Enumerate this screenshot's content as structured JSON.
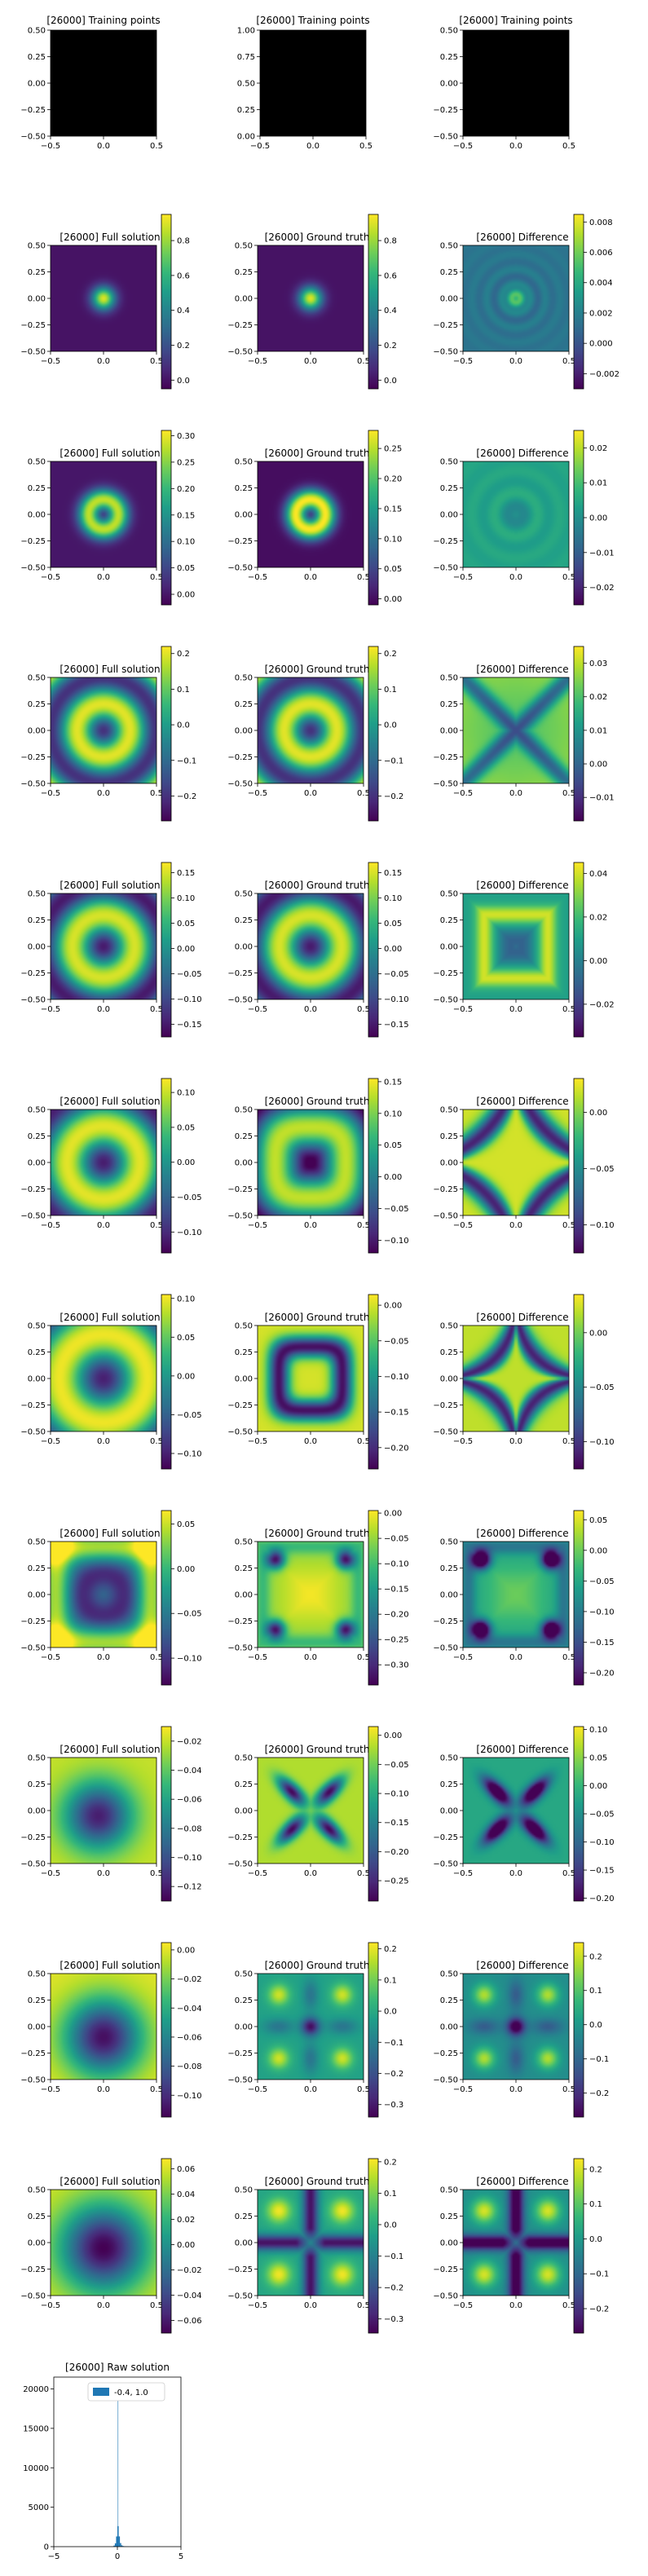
{
  "colors": {
    "viridis": [
      "#440154",
      "#482878",
      "#3e4a89",
      "#31688e",
      "#26828e",
      "#1f9e89",
      "#35b779",
      "#6dcd59",
      "#b4de2c",
      "#fde725"
    ],
    "hist_bar": "#1f77b4",
    "training_fill": "#000000"
  },
  "chart_data": {
    "type": "heatmap",
    "iteration_label": "[26000]",
    "training_row": {
      "panels": [
        {
          "title": "[26000] Training points",
          "xticks": [
            "−0.5",
            "0.0",
            "0.5"
          ],
          "yticks": [
            "0.50",
            "0.25",
            "0.00",
            "−0.25",
            "−0.50"
          ],
          "xlim": [
            -0.5,
            0.5
          ],
          "ylim": [
            -0.5,
            0.5
          ]
        },
        {
          "title": "[26000] Training points",
          "xticks": [
            "−0.5",
            "0.0",
            "0.5"
          ],
          "yticks": [
            "1.00",
            "0.75",
            "0.50",
            "0.25",
            "0.00"
          ],
          "xlim": [
            -0.5,
            0.5
          ],
          "ylim": [
            0.0,
            1.0
          ]
        },
        {
          "title": "[26000] Training points",
          "xticks": [
            "−0.5",
            "0.0",
            "0.5"
          ],
          "yticks": [
            "0.50",
            "0.25",
            "0.00",
            "−0.25",
            "−0.50"
          ],
          "xlim": [
            -0.5,
            0.5
          ],
          "ylim": [
            -0.5,
            0.5
          ]
        }
      ]
    },
    "axis_ticks": {
      "x": [
        "−0.5",
        "0.0",
        "0.5"
      ],
      "y": [
        "0.50",
        "0.25",
        "0.00",
        "−0.25",
        "−0.50"
      ],
      "xlim": [
        -0.5,
        0.5
      ],
      "ylim": [
        -0.5,
        0.5
      ]
    },
    "rows": [
      {
        "panels": [
          {
            "title": "[26000] Full solution",
            "pattern": "blob",
            "clim": [
              -0.05,
              0.95
            ],
            "cbar_ticks": [
              "0.8",
              "0.6",
              "0.4",
              "0.2",
              "0.0"
            ]
          },
          {
            "title": "[26000] Ground truth",
            "pattern": "blob",
            "clim": [
              -0.05,
              0.95
            ],
            "cbar_ticks": [
              "0.8",
              "0.6",
              "0.4",
              "0.2",
              "0.0"
            ]
          },
          {
            "title": "[26000] Difference",
            "pattern": "rings",
            "clim": [
              -0.003,
              0.0085
            ],
            "cbar_ticks": [
              "0.008",
              "0.006",
              "0.004",
              "0.002",
              "0.000",
              "−0.002"
            ]
          }
        ]
      },
      {
        "panels": [
          {
            "title": "[26000] Full solution",
            "pattern": "ring1",
            "clim": [
              -0.02,
              0.31
            ],
            "cbar_ticks": [
              "0.30",
              "0.25",
              "0.20",
              "0.15",
              "0.10",
              "0.05",
              "0.00"
            ]
          },
          {
            "title": "[26000] Ground truth",
            "pattern": "ring1",
            "clim": [
              -0.01,
              0.28
            ],
            "cbar_ticks": [
              "0.25",
              "0.20",
              "0.15",
              "0.10",
              "0.05",
              "0.00"
            ]
          },
          {
            "title": "[26000] Difference",
            "pattern": "softcross",
            "clim": [
              -0.025,
              0.025
            ],
            "cbar_ticks": [
              "0.02",
              "0.01",
              "0.00",
              "−0.01",
              "−0.02"
            ]
          }
        ]
      },
      {
        "panels": [
          {
            "title": "[26000] Full solution",
            "pattern": "ring2",
            "clim": [
              -0.27,
              0.22
            ],
            "cbar_ticks": [
              "0.2",
              "0.1",
              "0.0",
              "−0.1",
              "−0.2"
            ]
          },
          {
            "title": "[26000] Ground truth",
            "pattern": "ring2",
            "clim": [
              -0.27,
              0.22
            ],
            "cbar_ticks": [
              "0.2",
              "0.1",
              "0.0",
              "−0.1",
              "−0.2"
            ]
          },
          {
            "title": "[26000] Difference",
            "pattern": "xshape",
            "clim": [
              -0.017,
              0.035
            ],
            "cbar_ticks": [
              "0.03",
              "0.02",
              "0.01",
              "0.00",
              "−0.01"
            ]
          }
        ]
      },
      {
        "panels": [
          {
            "title": "[26000] Full solution",
            "pattern": "ring3",
            "clim": [
              -0.175,
              0.17
            ],
            "cbar_ticks": [
              "0.15",
              "0.10",
              "0.05",
              "0.00",
              "−0.05",
              "−0.10",
              "−0.15"
            ]
          },
          {
            "title": "[26000] Ground truth",
            "pattern": "ring3",
            "clim": [
              -0.175,
              0.17
            ],
            "cbar_ticks": [
              "0.15",
              "0.10",
              "0.05",
              "0.00",
              "−0.05",
              "−0.10",
              "−0.15"
            ]
          },
          {
            "title": "[26000] Difference",
            "pattern": "squarepulse",
            "clim": [
              -0.035,
              0.045
            ],
            "cbar_ticks": [
              "0.04",
              "0.02",
              "0.00",
              "−0.02"
            ]
          }
        ]
      },
      {
        "panels": [
          {
            "title": "[26000] Full solution",
            "pattern": "ring4",
            "clim": [
              -0.13,
              0.12
            ],
            "cbar_ticks": [
              "0.10",
              "0.05",
              "0.00",
              "−0.05",
              "−0.10"
            ]
          },
          {
            "title": "[26000] Ground truth",
            "pattern": "ring4sq",
            "clim": [
              -0.12,
              0.155
            ],
            "cbar_ticks": [
              "0.15",
              "0.10",
              "0.05",
              "0.00",
              "−0.05",
              "−0.10"
            ]
          },
          {
            "title": "[26000] Difference",
            "pattern": "astroid",
            "clim": [
              -0.125,
              0.03
            ],
            "cbar_ticks": [
              "0.00",
              "−0.05",
              "−0.10"
            ]
          }
        ]
      },
      {
        "panels": [
          {
            "title": "[26000] Full solution",
            "pattern": "ring5",
            "clim": [
              -0.12,
              0.105
            ],
            "cbar_ticks": [
              "0.10",
              "0.05",
              "0.00",
              "−0.05",
              "−0.10"
            ]
          },
          {
            "title": "[26000] Ground truth",
            "pattern": "square",
            "clim": [
              -0.23,
              0.015
            ],
            "cbar_ticks": [
              "0.00",
              "−0.05",
              "−0.10",
              "−0.15",
              "−0.20"
            ]
          },
          {
            "title": "[26000] Difference",
            "pattern": "astroid2",
            "clim": [
              -0.125,
              0.035
            ],
            "cbar_ticks": [
              "0.00",
              "−0.05",
              "−0.10"
            ]
          }
        ]
      },
      {
        "panels": [
          {
            "title": "[26000] Full solution",
            "pattern": "dim",
            "clim": [
              -0.13,
              0.065
            ],
            "cbar_ticks": [
              "0.05",
              "0.00",
              "−0.05",
              "−0.10"
            ]
          },
          {
            "title": "[26000] Ground truth",
            "pattern": "corners",
            "clim": [
              -0.34,
              0.005
            ],
            "cbar_ticks": [
              "0.00",
              "−0.05",
              "−0.10",
              "−0.15",
              "−0.20",
              "−0.25",
              "−0.30"
            ]
          },
          {
            "title": "[26000] Difference",
            "pattern": "corners",
            "clim": [
              -0.22,
              0.065
            ],
            "cbar_ticks": [
              "0.05",
              "0.00",
              "−0.05",
              "−0.10",
              "−0.15",
              "−0.20"
            ]
          }
        ]
      },
      {
        "panels": [
          {
            "title": "[26000] Full solution",
            "pattern": "dip",
            "clim": [
              -0.13,
              -0.01
            ],
            "cbar_ticks": [
              "−0.02",
              "−0.04",
              "−0.06",
              "−0.08",
              "−0.10",
              "−0.12"
            ]
          },
          {
            "title": "[26000] Ground truth",
            "pattern": "cross",
            "clim": [
              -0.285,
              0.015
            ],
            "cbar_ticks": [
              "0.00",
              "−0.05",
              "−0.10",
              "−0.15",
              "−0.20",
              "−0.25"
            ]
          },
          {
            "title": "[26000] Difference",
            "pattern": "cross",
            "clim": [
              -0.205,
              0.105
            ],
            "cbar_ticks": [
              "0.10",
              "0.05",
              "0.00",
              "−0.05",
              "−0.10",
              "−0.15",
              "−0.20"
            ]
          }
        ]
      },
      {
        "panels": [
          {
            "title": "[26000] Full solution",
            "pattern": "dip2",
            "clim": [
              -0.115,
              0.005
            ],
            "cbar_ticks": [
              "0.00",
              "−0.02",
              "−0.04",
              "−0.06",
              "−0.08",
              "−0.10"
            ]
          },
          {
            "title": "[26000] Ground truth",
            "pattern": "lobes",
            "clim": [
              -0.34,
              0.22
            ],
            "cbar_ticks": [
              "0.2",
              "0.1",
              "0.0",
              "−0.1",
              "−0.2",
              "−0.3"
            ]
          },
          {
            "title": "[26000] Difference",
            "pattern": "lobes",
            "clim": [
              -0.27,
              0.24
            ],
            "cbar_ticks": [
              "0.2",
              "0.1",
              "0.0",
              "−0.1",
              "−0.2"
            ]
          }
        ]
      },
      {
        "panels": [
          {
            "title": "[26000] Full solution",
            "pattern": "dip3",
            "clim": [
              -0.07,
              0.068
            ],
            "cbar_ticks": [
              "0.06",
              "0.04",
              "0.02",
              "0.00",
              "−0.02",
              "−0.04",
              "−0.06"
            ]
          },
          {
            "title": "[26000] Ground truth",
            "pattern": "plus",
            "clim": [
              -0.345,
              0.21
            ],
            "cbar_ticks": [
              "0.2",
              "0.1",
              "0.0",
              "−0.1",
              "−0.2",
              "−0.3"
            ]
          },
          {
            "title": "[26000] Difference",
            "pattern": "plus",
            "clim": [
              -0.27,
              0.23
            ],
            "cbar_ticks": [
              "0.2",
              "0.1",
              "0.0",
              "−0.1",
              "−0.2"
            ]
          }
        ]
      }
    ],
    "histogram": {
      "type": "bar",
      "title": "[26000] Raw solution",
      "legend_label": "-0.4, 1.0",
      "xticks": [
        "−5",
        "0",
        "5"
      ],
      "yticks": [
        "20000",
        "15000",
        "10000",
        "5000",
        "0"
      ],
      "xlim": [
        -5,
        5
      ],
      "ylim": [
        0,
        21500
      ],
      "bins": [
        -0.4,
        -0.3,
        -0.2,
        -0.1,
        0.0,
        0.1,
        0.2,
        0.3,
        0.4,
        0.5,
        0.6,
        0.7,
        0.8,
        0.9,
        1.0
      ],
      "counts": [
        40,
        140,
        420,
        1300,
        2600,
        1300,
        450,
        170,
        80,
        50,
        35,
        25,
        20,
        15
      ]
    }
  }
}
